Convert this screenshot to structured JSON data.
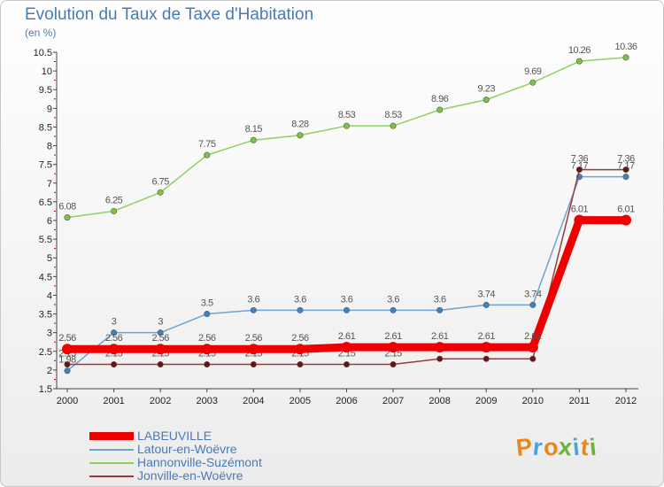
{
  "chart_data": {
    "type": "line",
    "title": "Evolution du Taux de Taxe d'Habitation",
    "unit_label": "(en %)",
    "x": [
      "2000",
      "2001",
      "2002",
      "2003",
      "2004",
      "2005",
      "2006",
      "2007",
      "2008",
      "2009",
      "2010",
      "2011",
      "2012"
    ],
    "ylim": [
      1.5,
      10.5
    ],
    "yticks": [
      "1.5",
      "2",
      "2.5",
      "3",
      "3.5",
      "4",
      "4.5",
      "5",
      "5.5",
      "6",
      "6.5",
      "7",
      "7.5",
      "8",
      "8.5",
      "9",
      "9.5",
      "10",
      "10.5"
    ],
    "grid": false,
    "legend_position": "bottom-left",
    "series": [
      {
        "name": "Hannonville-Suzémont",
        "color": "#8fd061",
        "marker_color": "#7cc442",
        "values": [
          6.08,
          6.25,
          6.75,
          7.75,
          8.15,
          8.28,
          8.53,
          8.53,
          8.96,
          9.23,
          9.69,
          10.26,
          10.36
        ],
        "labels": [
          "6.08",
          "6.25",
          "6.75",
          "7.75",
          "8.15",
          "8.28",
          "8.53",
          "8.53",
          "8.96",
          "9.23",
          "9.69",
          "10.26",
          "10.36"
        ]
      },
      {
        "name": "Latour-en-Woëvre",
        "color": "#6fa3d0",
        "marker_color": "#3f82c2",
        "values": [
          1.98,
          3,
          3,
          3.5,
          3.6,
          3.6,
          3.6,
          3.6,
          3.6,
          3.74,
          3.74,
          7.17,
          7.17
        ],
        "labels": [
          "1.98",
          "3",
          "3",
          "3.5",
          "3.6",
          "3.6",
          "3.6",
          "3.6",
          "3.6",
          "3.74",
          "3.74",
          "7.17",
          "7.17"
        ]
      },
      {
        "name": "Jonville-en-Woëvre",
        "color": "#9b3a3a",
        "marker_color": "#6e1010",
        "values": [
          2.15,
          2.15,
          2.15,
          2.15,
          2.15,
          2.15,
          2.15,
          2.15,
          2.3,
          2.3,
          2.3,
          7.36,
          7.36
        ],
        "labels": [
          "2.15",
          "2.15",
          "2.15",
          "2.15",
          "2.15",
          "2.15",
          "2.15",
          "2.15",
          "",
          "",
          "",
          "7.36",
          "7.36"
        ]
      },
      {
        "name": "LABEUVILLE",
        "color": "#ee0000",
        "marker_color": "#ee0000",
        "values": [
          2.56,
          2.56,
          2.56,
          2.56,
          2.56,
          2.56,
          2.61,
          2.61,
          2.61,
          2.61,
          2.61,
          6.01,
          6.01
        ],
        "labels": [
          "2.56",
          "2.56",
          "2.56",
          "2.56",
          "2.56",
          "2.56",
          "2.61",
          "2.61",
          "2.61",
          "2.61",
          "2.61",
          "6.01",
          "6.01"
        ]
      }
    ],
    "legend": [
      {
        "name": "LABEUVILLE",
        "color": "#ee0000",
        "weight": "thick"
      },
      {
        "name": "Latour-en-Woëvre",
        "color": "#6fa3d0",
        "weight": "thin"
      },
      {
        "name": "Hannonville-Suzémont",
        "color": "#8fd061",
        "weight": "thin"
      },
      {
        "name": "Jonville-en-Woëvre",
        "color": "#9b3a3a",
        "weight": "thin"
      }
    ]
  },
  "logo": {
    "text": "Proxiti",
    "colors": [
      "#e8871e",
      "#4aa3df",
      "#e8871e",
      "#6cb33e",
      "#4aa3df",
      "#e8871e",
      "#6cb33e"
    ]
  }
}
